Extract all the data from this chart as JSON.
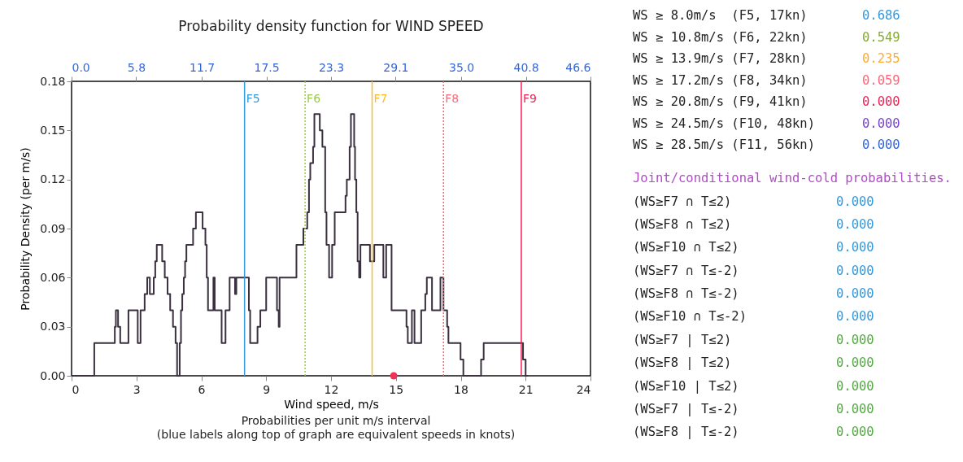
{
  "chart_data": {
    "type": "step",
    "title": "Probability density function for WIND SPEED",
    "xlabel": "Wind speed, m/s",
    "ylabel": "Probability Density (per m/s)",
    "xlim": [
      0,
      24
    ],
    "xticks": [
      0,
      3,
      6,
      9,
      12,
      15,
      18,
      21,
      24
    ],
    "ylim": [
      0,
      0.18
    ],
    "yticks": [
      {
        "value": 0,
        "label": "0.00"
      },
      {
        "value": 0.03,
        "label": "0.03"
      },
      {
        "value": 0.06,
        "label": "0.06"
      },
      {
        "value": 0.09,
        "label": "0.09"
      },
      {
        "value": 0.12,
        "label": "0.12"
      },
      {
        "value": 0.15,
        "label": "0.15"
      },
      {
        "value": 0.18,
        "label": "0.18"
      }
    ],
    "x2lim": [
      0,
      46.6
    ],
    "x2ticks": [
      {
        "value": 0,
        "label": "0.0"
      },
      5.8,
      11.7,
      17.5,
      23.3,
      29.1,
      {
        "value": 35,
        "label": "35.0"
      },
      40.8,
      46.6
    ],
    "series": [
      {
        "color": "#3a3040",
        "x": [
          0,
          1.05,
          2.0,
          2.05,
          2.15,
          2.25,
          2.63,
          3.06,
          3.19,
          3.38,
          3.5,
          3.62,
          3.8,
          3.87,
          3.94,
          4.19,
          4.31,
          4.44,
          4.56,
          4.69,
          4.81,
          4.88,
          5.0,
          5.06,
          5.12,
          5.19,
          5.25,
          5.31,
          5.62,
          5.75,
          6.06,
          6.19,
          6.25,
          6.31,
          6.56,
          6.62,
          6.94,
          7.12,
          7.31,
          7.56,
          7.62,
          8.2,
          8.26,
          8.6,
          8.73,
          9.0,
          9.5,
          9.58,
          9.62,
          10.4,
          10.72,
          10.9,
          10.98,
          11.04,
          11.17,
          11.23,
          11.48,
          11.6,
          11.73,
          11.79,
          11.91,
          12.05,
          12.17,
          12.67,
          12.73,
          12.86,
          12.92,
          13.07,
          13.11,
          13.17,
          13.23,
          13.3,
          13.36,
          13.8,
          14.0,
          14.42,
          14.55,
          14.8,
          15.49,
          15.55,
          15.74,
          15.86,
          16.17,
          16.36,
          16.43,
          16.67,
          17.06,
          17.2,
          17.37,
          17.43,
          17.99,
          18.12,
          18.94,
          19.06,
          20.88,
          21.0,
          21.1
        ],
        "values": [
          0,
          0.02,
          0.03,
          0.04,
          0.03,
          0.02,
          0.04,
          0.02,
          0.04,
          0.05,
          0.06,
          0.05,
          0.06,
          0.07,
          0.08,
          0.07,
          0.06,
          0.05,
          0.04,
          0.03,
          0.02,
          0,
          0.02,
          0.04,
          0.05,
          0.06,
          0.07,
          0.08,
          0.09,
          0.1,
          0.09,
          0.08,
          0.06,
          0.04,
          0.06,
          0.04,
          0.02,
          0.04,
          0.06,
          0.05,
          0.06,
          0.04,
          0.02,
          0.03,
          0.04,
          0.06,
          0.04,
          0.03,
          0.06,
          0.08,
          0.09,
          0.1,
          0.12,
          0.13,
          0.14,
          0.16,
          0.15,
          0.14,
          0.1,
          0.08,
          0.06,
          0.08,
          0.1,
          0.11,
          0.12,
          0.14,
          0.16,
          0.14,
          0.12,
          0.1,
          0.07,
          0.06,
          0.08,
          0.07,
          0.08,
          0.06,
          0.08,
          0.04,
          0.03,
          0.02,
          0.04,
          0.02,
          0.04,
          0.05,
          0.06,
          0.04,
          0.06,
          0.04,
          0.03,
          0.02,
          0.01,
          0,
          0.01,
          0.02,
          0.01,
          0,
          0
        ]
      },
      {
        "type": "scatter",
        "color": "#ee3355",
        "x": [
          14.9
        ],
        "values": [
          0
        ]
      }
    ],
    "ref_lines": [
      {
        "axis": "x",
        "value": 8.0,
        "label": "F5",
        "color": "#3399dd",
        "line_style": "solid"
      },
      {
        "axis": "x",
        "value": 10.8,
        "label": "F6",
        "color": "#99cc44",
        "line_style": "dotted"
      },
      {
        "axis": "x",
        "value": 13.9,
        "label": "F7",
        "color": "#ffbb22",
        "line_style": "solid"
      },
      {
        "axis": "x",
        "value": 17.2,
        "label": "F8",
        "color": "#ff6677",
        "line_style": "dotted"
      },
      {
        "axis": "x",
        "value": 20.8,
        "label": "F9",
        "color": "#ee2255",
        "line_style": "solid"
      }
    ],
    "annotations": [
      "Probabilities per unit m/s interval",
      "(blue labels along top of graph are equivalent speeds in knots)",
      "WS ≥ 8.0m/s  (F5, 17kn)",
      "0.686",
      "WS ≥ 10.8m/s (F6, 22kn)",
      "0.549",
      "WS ≥ 13.9m/s (F7, 28kn)",
      "0.235",
      "WS ≥ 17.2m/s (F8, 34kn)",
      "0.059",
      "WS ≥ 20.8m/s (F9, 41kn)",
      "0.000",
      "WS ≥ 24.5m/s (F10, 48kn)",
      "0.000",
      "WS ≥ 28.5m/s (F11, 56kn)",
      "0.000",
      "Joint/conditional wind-cold probabilities.",
      "(WS≥F7 ∩ T≤2)",
      "0.000",
      "(WS≥F8 ∩ T≤2)",
      "0.000",
      "(WS≥F10 ∩ T≤2)",
      "0.000",
      "(WS≥F7 ∩ T≤-2)",
      "0.000",
      "(WS≥F8 ∩ T≤-2)",
      "0.000",
      "(WS≥F10 ∩ T≤-2)",
      "0.000",
      "(WS≥F7 | T≤2)",
      "0.000",
      "(WS≥F8 | T≤2)",
      "0.000",
      "(WS≥F10 | T≤2)",
      "0.000",
      "(WS≥F7 | T≤-2)",
      "0.000",
      "(WS≥F8 | T≤-2)",
      "0.000"
    ]
  }
}
